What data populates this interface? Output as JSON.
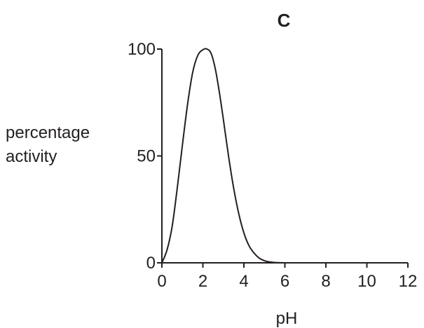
{
  "chart_data": {
    "type": "line",
    "title": "C",
    "xlabel": "pH",
    "ylabel_lines": [
      "percentage",
      "activity"
    ],
    "xlim": [
      0,
      12
    ],
    "ylim": [
      0,
      100
    ],
    "x_ticks": [
      "0",
      "2",
      "4",
      "6",
      "8",
      "10",
      "12"
    ],
    "y_ticks": [
      "0",
      "50",
      "100"
    ],
    "grid": false,
    "legend": "none",
    "series": [
      {
        "x": [
          0,
          0.25,
          0.5,
          0.75,
          1.0,
          1.25,
          1.5,
          1.75,
          2.0,
          2.2,
          2.4,
          2.6,
          2.8,
          3.0,
          3.25,
          3.5,
          3.75,
          4.0,
          4.25,
          4.5,
          4.75,
          5.0,
          5.25,
          5.5,
          5.75,
          6.0
        ],
        "y": [
          0,
          6,
          17,
          35,
          55,
          74,
          89,
          97,
          99.7,
          100,
          98,
          91,
          80,
          67,
          50,
          35,
          23,
          14,
          8,
          4.5,
          2.2,
          1.0,
          0.4,
          0.15,
          0.05,
          0
        ]
      }
    ]
  }
}
